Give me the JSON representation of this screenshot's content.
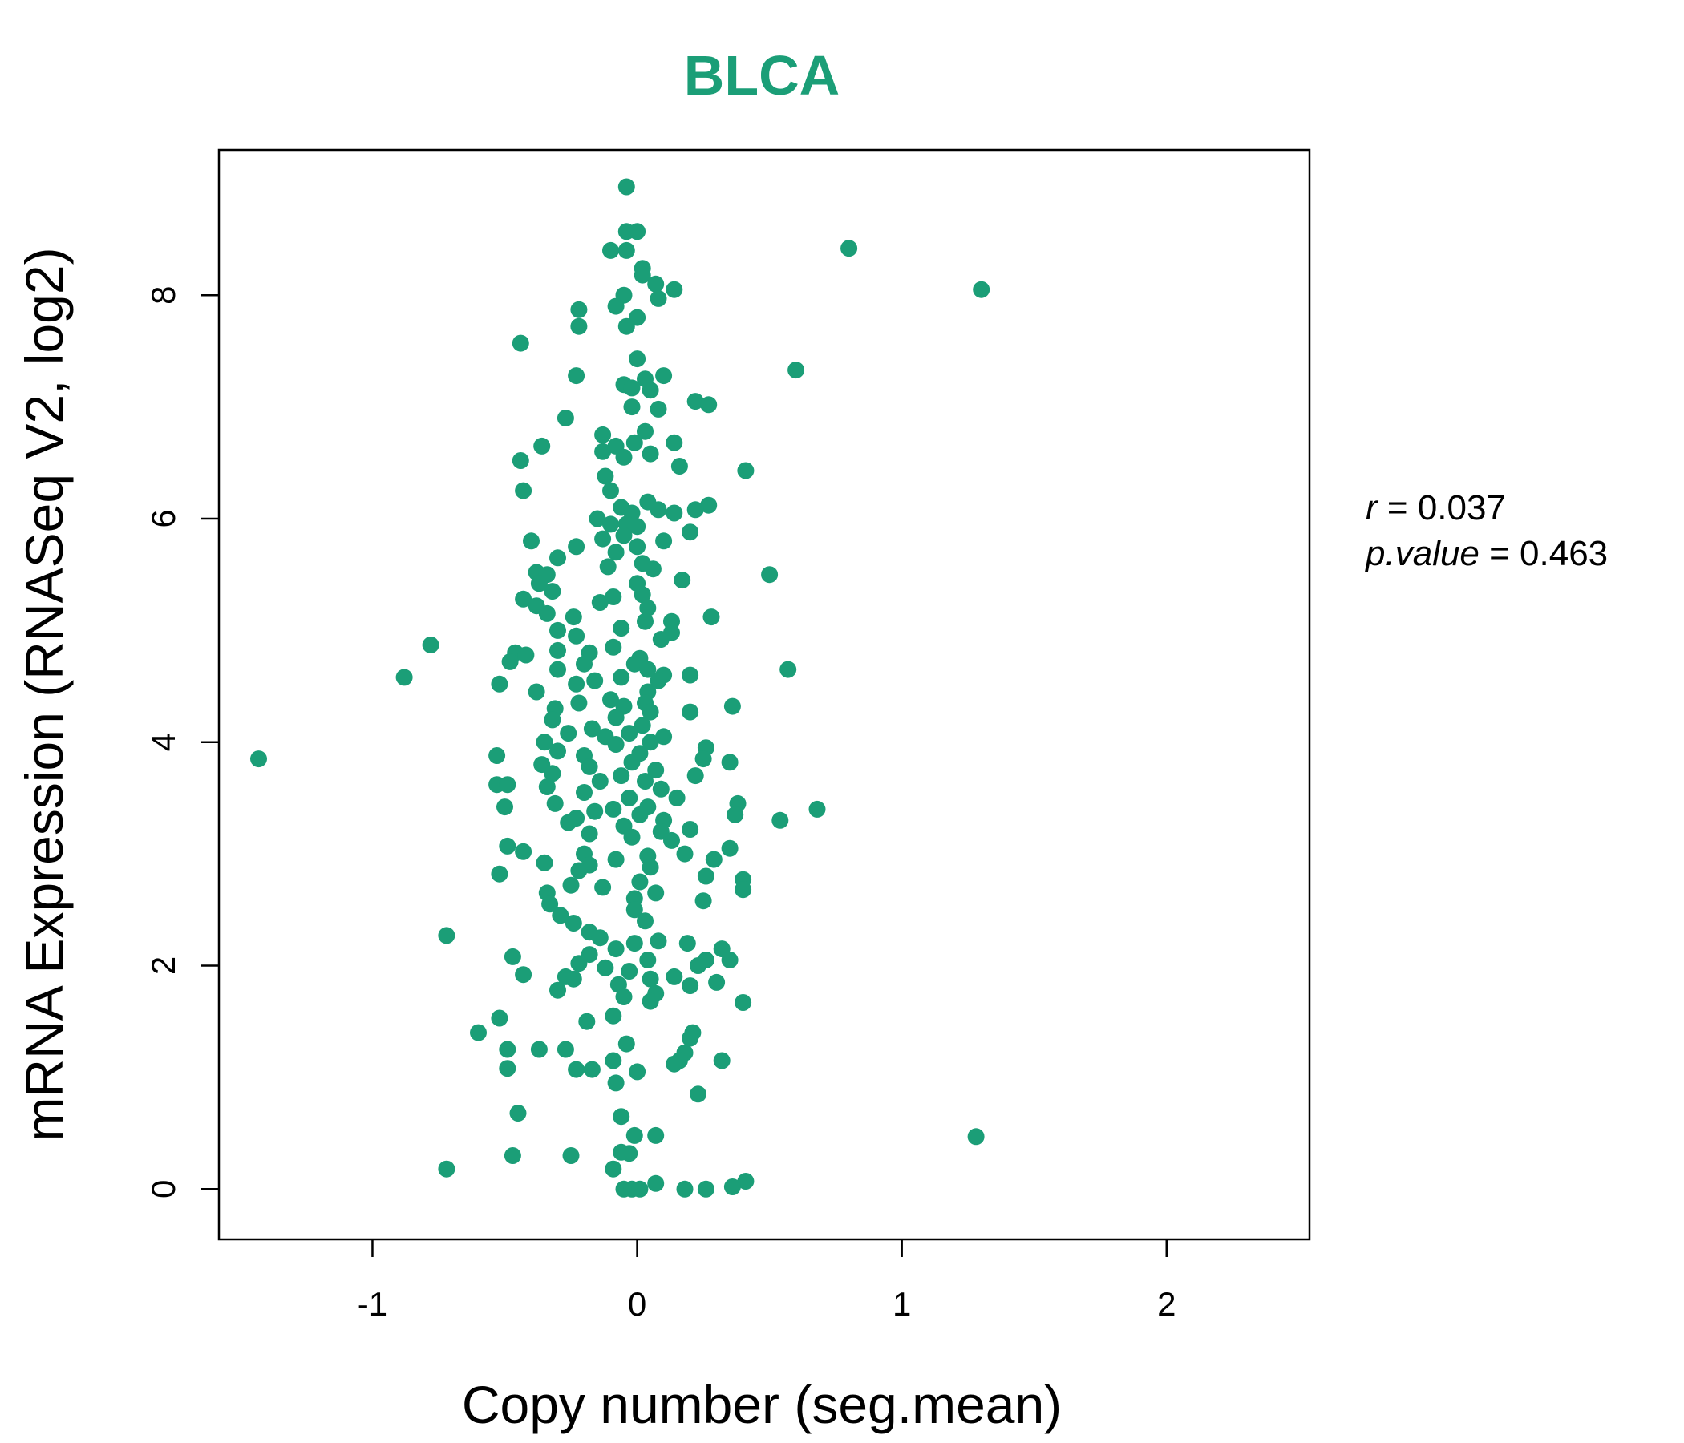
{
  "colors": {
    "point": "#1b9e77",
    "title": "#1b9e77",
    "axis": "#000000"
  },
  "chart_data": {
    "type": "scatter",
    "title": "BLCA",
    "xlabel": "Copy number (seg.mean)",
    "ylabel": "mRNA Expression (RNASeq V2, log2)",
    "xlim": [
      -1.58,
      2.54
    ],
    "ylim": [
      -0.45,
      9.3
    ],
    "xticks": [
      -1,
      0,
      1,
      2
    ],
    "yticks": [
      0,
      2,
      4,
      6,
      8
    ],
    "xtick_labels": [
      "-1",
      "0",
      "1",
      "2"
    ],
    "ytick_labels": [
      "0",
      "2",
      "4",
      "6",
      "8"
    ],
    "stats": {
      "r_label": "r",
      "r_value": "0.037",
      "p_label": "p.value",
      "p_value": "0.463"
    },
    "points": [
      [
        -0.04,
        8.97
      ],
      [
        -0.04,
        8.57
      ],
      [
        0.0,
        8.57
      ],
      [
        -0.1,
        8.4
      ],
      [
        -0.04,
        8.4
      ],
      [
        0.8,
        8.42
      ],
      [
        1.3,
        8.05
      ],
      [
        0.02,
        8.24
      ],
      [
        0.02,
        8.18
      ],
      [
        0.07,
        8.1
      ],
      [
        0.14,
        8.05
      ],
      [
        0.08,
        7.97
      ],
      [
        -0.05,
        8.0
      ],
      [
        -0.08,
        7.9
      ],
      [
        0.0,
        7.8
      ],
      [
        -0.04,
        7.72
      ],
      [
        -0.22,
        7.87
      ],
      [
        -0.22,
        7.72
      ],
      [
        -0.44,
        7.57
      ],
      [
        0.0,
        7.43
      ],
      [
        0.6,
        7.33
      ],
      [
        -0.23,
        7.28
      ],
      [
        0.1,
        7.28
      ],
      [
        0.03,
        7.25
      ],
      [
        -0.05,
        7.2
      ],
      [
        -0.02,
        7.17
      ],
      [
        0.05,
        7.15
      ],
      [
        0.22,
        7.05
      ],
      [
        0.27,
        7.02
      ],
      [
        -0.02,
        7.0
      ],
      [
        0.08,
        6.98
      ],
      [
        -0.27,
        6.9
      ],
      [
        -0.13,
        6.75
      ],
      [
        0.03,
        6.78
      ],
      [
        -0.01,
        6.68
      ],
      [
        0.14,
        6.68
      ],
      [
        -0.08,
        6.65
      ],
      [
        -0.36,
        6.65
      ],
      [
        -0.13,
        6.6
      ],
      [
        0.05,
        6.58
      ],
      [
        -0.05,
        6.55
      ],
      [
        -0.44,
        6.52
      ],
      [
        0.16,
        6.47
      ],
      [
        0.41,
        6.43
      ],
      [
        -0.12,
        6.38
      ],
      [
        -0.1,
        6.25
      ],
      [
        -0.43,
        6.25
      ],
      [
        0.04,
        6.15
      ],
      [
        0.27,
        6.12
      ],
      [
        -0.06,
        6.1
      ],
      [
        0.08,
        6.08
      ],
      [
        -0.02,
        6.05
      ],
      [
        0.22,
        6.08
      ],
      [
        0.14,
        6.05
      ],
      [
        -0.15,
        6.0
      ],
      [
        -0.1,
        5.95
      ],
      [
        -0.04,
        5.95
      ],
      [
        0.0,
        5.93
      ],
      [
        0.2,
        5.88
      ],
      [
        -0.05,
        5.85
      ],
      [
        -0.13,
        5.82
      ],
      [
        0.1,
        5.8
      ],
      [
        -0.4,
        5.8
      ],
      [
        0.0,
        5.75
      ],
      [
        -0.23,
        5.75
      ],
      [
        -0.08,
        5.7
      ],
      [
        -0.3,
        5.65
      ],
      [
        0.02,
        5.6
      ],
      [
        -0.11,
        5.57
      ],
      [
        0.06,
        5.55
      ],
      [
        -0.38,
        5.52
      ],
      [
        -0.34,
        5.5
      ],
      [
        0.5,
        5.5
      ],
      [
        0.17,
        5.45
      ],
      [
        0.0,
        5.42
      ],
      [
        -0.37,
        5.42
      ],
      [
        -0.32,
        5.35
      ],
      [
        0.02,
        5.32
      ],
      [
        -0.09,
        5.3
      ],
      [
        -0.43,
        5.28
      ],
      [
        -0.14,
        5.25
      ],
      [
        -0.38,
        5.22
      ],
      [
        0.04,
        5.2
      ],
      [
        -0.34,
        5.15
      ],
      [
        -0.24,
        5.12
      ],
      [
        0.28,
        5.12
      ],
      [
        0.03,
        5.08
      ],
      [
        0.13,
        5.08
      ],
      [
        -0.06,
        5.02
      ],
      [
        -0.3,
        5.0
      ],
      [
        0.13,
        4.98
      ],
      [
        -0.23,
        4.95
      ],
      [
        0.09,
        4.92
      ],
      [
        -0.78,
        4.87
      ],
      [
        -0.09,
        4.85
      ],
      [
        -0.3,
        4.82
      ],
      [
        -0.18,
        4.8
      ],
      [
        -0.46,
        4.8
      ],
      [
        -0.42,
        4.78
      ],
      [
        0.01,
        4.75
      ],
      [
        -0.48,
        4.72
      ],
      [
        -0.2,
        4.7
      ],
      [
        -0.01,
        4.7
      ],
      [
        -0.3,
        4.65
      ],
      [
        0.04,
        4.65
      ],
      [
        0.57,
        4.65
      ],
      [
        0.1,
        4.6
      ],
      [
        0.2,
        4.6
      ],
      [
        -0.88,
        4.58
      ],
      [
        -0.06,
        4.58
      ],
      [
        0.08,
        4.55
      ],
      [
        -0.16,
        4.55
      ],
      [
        -0.23,
        4.52
      ],
      [
        -0.52,
        4.52
      ],
      [
        -0.38,
        4.45
      ],
      [
        0.04,
        4.45
      ],
      [
        -0.1,
        4.38
      ],
      [
        0.03,
        4.35
      ],
      [
        -0.22,
        4.35
      ],
      [
        0.36,
        4.32
      ],
      [
        -0.05,
        4.32
      ],
      [
        -0.31,
        4.3
      ],
      [
        0.05,
        4.27
      ],
      [
        0.2,
        4.27
      ],
      [
        -0.08,
        4.22
      ],
      [
        -0.32,
        4.2
      ],
      [
        0.02,
        4.15
      ],
      [
        -0.17,
        4.12
      ],
      [
        -0.03,
        4.08
      ],
      [
        -0.26,
        4.08
      ],
      [
        -0.12,
        4.05
      ],
      [
        0.1,
        4.05
      ],
      [
        0.05,
        4.0
      ],
      [
        -0.35,
        4.0
      ],
      [
        -0.08,
        3.98
      ],
      [
        0.26,
        3.95
      ],
      [
        -0.3,
        3.92
      ],
      [
        0.01,
        3.9
      ],
      [
        -0.2,
        3.88
      ],
      [
        -0.53,
        3.88
      ],
      [
        0.25,
        3.85
      ],
      [
        -1.43,
        3.85
      ],
      [
        -0.02,
        3.82
      ],
      [
        0.35,
        3.82
      ],
      [
        -0.36,
        3.8
      ],
      [
        -0.18,
        3.78
      ],
      [
        0.07,
        3.75
      ],
      [
        -0.32,
        3.72
      ],
      [
        0.22,
        3.7
      ],
      [
        -0.06,
        3.7
      ],
      [
        -0.14,
        3.65
      ],
      [
        0.03,
        3.65
      ],
      [
        -0.53,
        3.62
      ],
      [
        -0.49,
        3.62
      ],
      [
        -0.34,
        3.6
      ],
      [
        0.09,
        3.58
      ],
      [
        -0.2,
        3.55
      ],
      [
        0.15,
        3.5
      ],
      [
        -0.03,
        3.5
      ],
      [
        -0.31,
        3.45
      ],
      [
        0.38,
        3.45
      ],
      [
        0.04,
        3.42
      ],
      [
        -0.5,
        3.42
      ],
      [
        -0.09,
        3.4
      ],
      [
        0.68,
        3.4
      ],
      [
        -0.16,
        3.38
      ],
      [
        0.01,
        3.35
      ],
      [
        0.37,
        3.35
      ],
      [
        -0.23,
        3.32
      ],
      [
        0.1,
        3.3
      ],
      [
        0.54,
        3.3
      ],
      [
        -0.26,
        3.28
      ],
      [
        -0.05,
        3.25
      ],
      [
        0.2,
        3.22
      ],
      [
        0.09,
        3.2
      ],
      [
        -0.18,
        3.18
      ],
      [
        -0.02,
        3.15
      ],
      [
        0.13,
        3.12
      ],
      [
        -0.49,
        3.07
      ],
      [
        0.35,
        3.05
      ],
      [
        -0.43,
        3.02
      ],
      [
        -0.2,
        3.0
      ],
      [
        0.18,
        3.0
      ],
      [
        0.04,
        2.98
      ],
      [
        0.29,
        2.95
      ],
      [
        -0.08,
        2.95
      ],
      [
        -0.35,
        2.92
      ],
      [
        -0.18,
        2.9
      ],
      [
        0.05,
        2.88
      ],
      [
        -0.22,
        2.85
      ],
      [
        -0.52,
        2.82
      ],
      [
        0.26,
        2.8
      ],
      [
        0.4,
        2.77
      ],
      [
        0.01,
        2.75
      ],
      [
        -0.25,
        2.72
      ],
      [
        -0.13,
        2.7
      ],
      [
        0.4,
        2.68
      ],
      [
        0.07,
        2.65
      ],
      [
        -0.34,
        2.65
      ],
      [
        -0.01,
        2.6
      ],
      [
        0.25,
        2.58
      ],
      [
        -0.33,
        2.55
      ],
      [
        -0.01,
        2.5
      ],
      [
        -0.29,
        2.45
      ],
      [
        0.03,
        2.4
      ],
      [
        -0.24,
        2.38
      ],
      [
        -0.18,
        2.3
      ],
      [
        -0.14,
        2.25
      ],
      [
        0.08,
        2.22
      ],
      [
        -0.72,
        2.27
      ],
      [
        -0.01,
        2.2
      ],
      [
        0.19,
        2.2
      ],
      [
        -0.08,
        2.15
      ],
      [
        0.32,
        2.15
      ],
      [
        -0.18,
        2.1
      ],
      [
        -0.47,
        2.08
      ],
      [
        0.04,
        2.05
      ],
      [
        0.26,
        2.05
      ],
      [
        0.35,
        2.05
      ],
      [
        -0.22,
        2.02
      ],
      [
        0.23,
        2.0
      ],
      [
        -0.12,
        1.98
      ],
      [
        -0.03,
        1.95
      ],
      [
        -0.43,
        1.92
      ],
      [
        -0.27,
        1.9
      ],
      [
        0.14,
        1.9
      ],
      [
        -0.24,
        1.88
      ],
      [
        0.05,
        1.88
      ],
      [
        0.3,
        1.85
      ],
      [
        -0.07,
        1.83
      ],
      [
        0.2,
        1.82
      ],
      [
        -0.3,
        1.78
      ],
      [
        0.07,
        1.75
      ],
      [
        -0.05,
        1.72
      ],
      [
        0.05,
        1.68
      ],
      [
        0.4,
        1.67
      ],
      [
        -0.09,
        1.55
      ],
      [
        -0.52,
        1.53
      ],
      [
        -0.19,
        1.5
      ],
      [
        0.21,
        1.4
      ],
      [
        -0.6,
        1.4
      ],
      [
        0.2,
        1.35
      ],
      [
        -0.04,
        1.3
      ],
      [
        -0.49,
        1.25
      ],
      [
        -0.37,
        1.25
      ],
      [
        -0.27,
        1.25
      ],
      [
        0.18,
        1.22
      ],
      [
        0.16,
        1.15
      ],
      [
        0.32,
        1.15
      ],
      [
        -0.09,
        1.15
      ],
      [
        0.14,
        1.12
      ],
      [
        -0.49,
        1.08
      ],
      [
        -0.23,
        1.07
      ],
      [
        -0.17,
        1.07
      ],
      [
        0.0,
        1.05
      ],
      [
        -0.08,
        0.95
      ],
      [
        0.23,
        0.85
      ],
      [
        -0.45,
        0.68
      ],
      [
        -0.06,
        0.65
      ],
      [
        0.07,
        0.48
      ],
      [
        -0.01,
        0.48
      ],
      [
        1.28,
        0.47
      ],
      [
        -0.06,
        0.33
      ],
      [
        -0.03,
        0.32
      ],
      [
        -0.25,
        0.3
      ],
      [
        -0.47,
        0.3
      ],
      [
        -0.09,
        0.18
      ],
      [
        -0.72,
        0.18
      ],
      [
        0.41,
        0.07
      ],
      [
        0.07,
        0.05
      ],
      [
        0.36,
        0.02
      ],
      [
        -0.05,
        0.0
      ],
      [
        -0.02,
        0.0
      ],
      [
        0.01,
        0.0
      ],
      [
        0.18,
        0.0
      ],
      [
        0.26,
        0.0
      ]
    ]
  }
}
